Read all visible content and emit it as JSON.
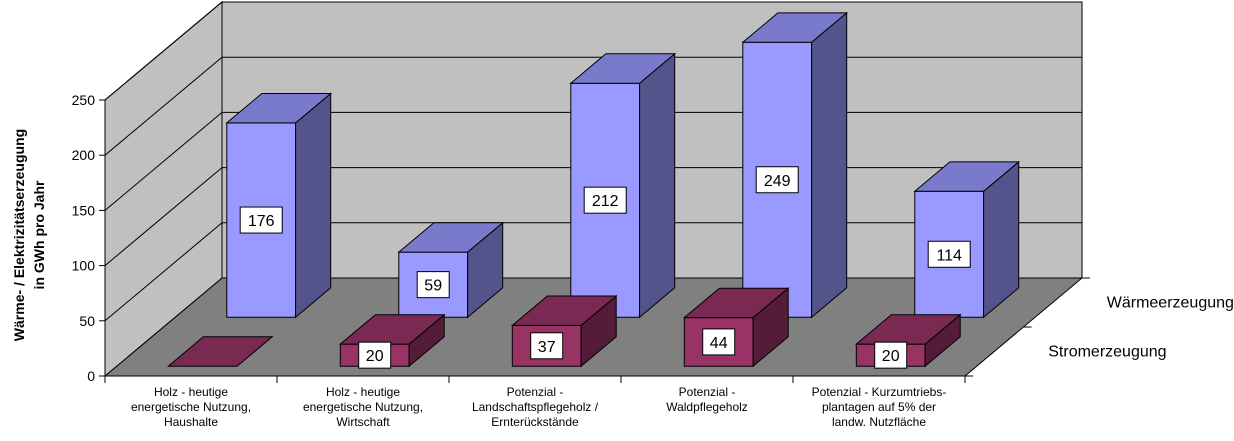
{
  "chart_data": {
    "type": "bar",
    "subtype": "3d-column",
    "categories": [
      [
        "Holz - heutige",
        "energetische Nutzung,",
        "Haushalte"
      ],
      [
        "Holz - heutige",
        "energetische Nutzung,",
        "Wirtschaft"
      ],
      [
        "Potenzial -",
        "Landschaftspflegeholz /",
        "Ernterückstände"
      ],
      [
        "Potenzial -",
        "Waldpflegeholz"
      ],
      [
        "Potenzial - Kurzumtriebs-",
        "plantagen auf 5% der",
        "landw. Nutzfläche"
      ]
    ],
    "series": [
      {
        "name": "Stromerzeugung",
        "values": [
          0,
          20,
          37,
          44,
          20
        ],
        "labels": [
          "",
          "20",
          "37",
          "44",
          "20"
        ],
        "color": "#993366"
      },
      {
        "name": "Wärmeerzeugung",
        "values": [
          176,
          59,
          212,
          249,
          114
        ],
        "labels": [
          "176",
          "59",
          "212",
          "249",
          "114"
        ],
        "color": "#9999ff"
      }
    ],
    "ylabel_line1": "Wärme- / Elektrizitätserzeugung",
    "ylabel_line2": "in GWh pro Jahr",
    "yticks": [
      "0",
      "50",
      "100",
      "150",
      "200",
      "250"
    ],
    "ylim": [
      0,
      250
    ],
    "grid": true,
    "legend": "series labels on depth axis (right)"
  }
}
